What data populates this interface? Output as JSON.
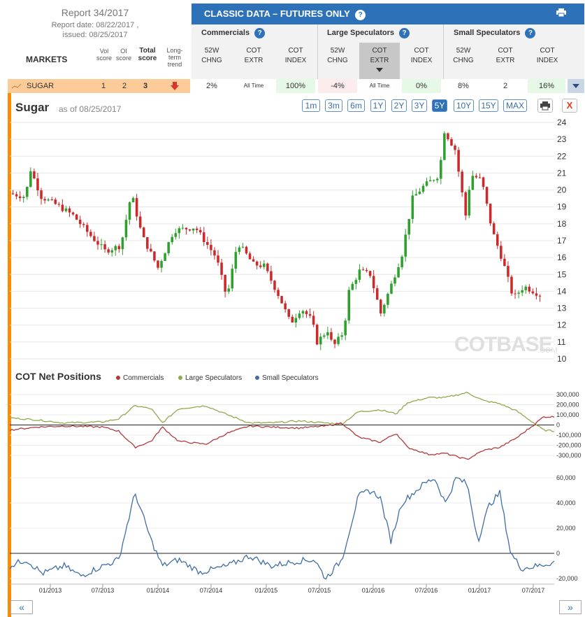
{
  "report": {
    "title": "Report 34/2017",
    "report_date": "Report date: 08/22/2017 ,",
    "issued": "issued: 08/25/2017"
  },
  "header": {
    "classic_title": "CLASSIC DATA – FUTURES ONLY",
    "groups": [
      "Commercials",
      "Large Speculators",
      "Small Speculators"
    ],
    "col_heads": [
      [
        "52W",
        "CHNG"
      ],
      [
        "COT",
        "EXTR"
      ],
      [
        "COT",
        "INDEX"
      ],
      [
        "52W",
        "CHNG"
      ],
      [
        "COT",
        "EXTR"
      ],
      [
        "COT",
        "INDEX"
      ],
      [
        "52W",
        "CHNG"
      ],
      [
        "COT",
        "EXTR"
      ],
      [
        "COT",
        "INDEX"
      ]
    ],
    "markets_label": "MARKETS",
    "vol_score": [
      "Vol",
      "score"
    ],
    "oi_score": [
      "OI",
      "score"
    ],
    "total_score": [
      "Total",
      "score"
    ],
    "trend": [
      "Long-",
      "term",
      "trend"
    ]
  },
  "row": {
    "market": "SUGAR",
    "vol": "1",
    "oi": "2",
    "total": "3",
    "values": [
      "2%",
      "All Time",
      "100%",
      "-4%",
      "All Time",
      "0%",
      "8%",
      "2",
      "16%"
    ]
  },
  "chart": {
    "title": "Sugar",
    "as_of": "as of 08/25/2017",
    "timeframes": [
      "1m",
      "3m",
      "6m",
      "1Y",
      "2Y",
      "3Y",
      "5Y",
      "10Y",
      "15Y",
      "MAX"
    ],
    "active_timeframe": "5Y",
    "close_label": "X",
    "price_ticks": [
      "24",
      "23",
      "22",
      "21",
      "20",
      "19",
      "18",
      "17",
      "16",
      "15",
      "14",
      "13",
      "12",
      "11",
      "10"
    ],
    "watermark": "COTBASE",
    "watermark_sub": ".COM"
  },
  "cot": {
    "title": "COT Net Positions",
    "legend": [
      {
        "name": "Commercials",
        "color": "#b23a3a"
      },
      {
        "name": "Large Speculators",
        "color": "#8faa4f"
      },
      {
        "name": "Small Speculators",
        "color": "#3e6ea6"
      }
    ],
    "upper_ticks": [
      "300,000",
      "200,000",
      "100,000",
      "0",
      "-100,000",
      "-200,000",
      "-300,000"
    ],
    "lower_ticks": [
      "60,000",
      "40,000",
      "20,000",
      "0",
      "-20,000"
    ],
    "x_ticks": [
      "01/2013",
      "07/2013",
      "01/2014",
      "07/2014",
      "01/2015",
      "07/2015",
      "01/2016",
      "07/2016",
      "01/2017",
      "07/2017"
    ]
  },
  "nav": {
    "prev": "«",
    "next": "»"
  },
  "colors": {
    "up": "#2ea02e",
    "down": "#cc2a2a",
    "accent": "#2d72b8",
    "orange": "#ff8a00"
  }
}
